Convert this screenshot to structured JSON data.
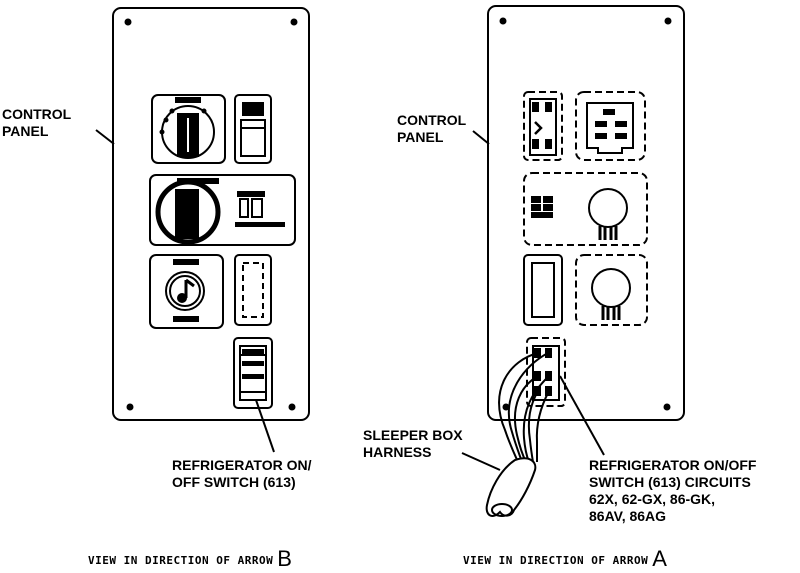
{
  "left_view": {
    "control_panel_label": [
      "CONTROL",
      "PANEL"
    ],
    "switch_label": [
      "REFRIGERATOR ON/",
      "OFF SWITCH (613)"
    ],
    "caption_text": "VIEW IN DIRECTION OF ARROW",
    "caption_letter": "B"
  },
  "right_view": {
    "control_panel_label": [
      "CONTROL",
      "PANEL"
    ],
    "harness_label": [
      "SLEEPER BOX",
      "HARNESS"
    ],
    "circuits_label": [
      "REFRIGERATOR ON/OFF",
      "SWITCH (613) CIRCUITS",
      "62X, 62-GX, 86-GK,",
      "86AV, 86AG"
    ],
    "caption_text": "VIEW IN DIRECTION OF ARROW",
    "caption_letter": "A"
  },
  "colors": {
    "line": "#000000",
    "background": "#ffffff"
  }
}
